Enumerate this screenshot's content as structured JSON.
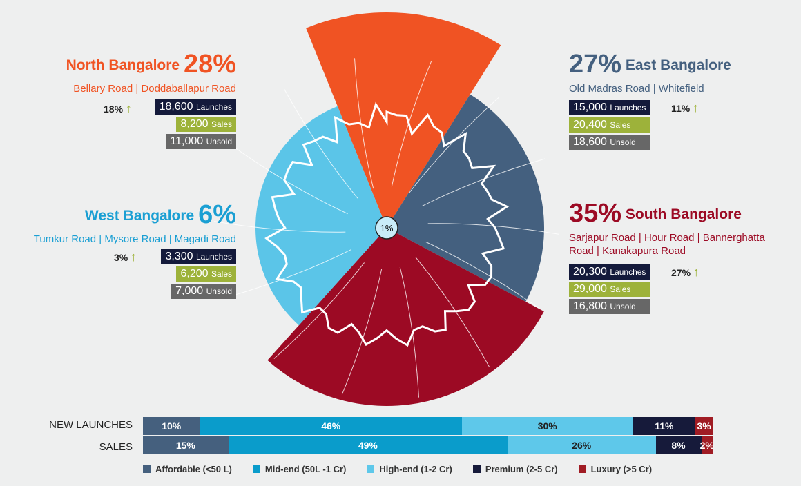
{
  "chart_data": [
    {
      "type": "polar-area",
      "regions": [
        {
          "key": "north",
          "name": "North Bangalore",
          "share": "28%",
          "value": 28,
          "roads": "Bellary Road | Doddaballapur Road",
          "growth": "18%",
          "launches": "18,600",
          "sales": "8,200",
          "unsold": "11,000",
          "color": "#f05323"
        },
        {
          "key": "east",
          "name": "East Bangalore",
          "share": "27%",
          "value": 27,
          "roads": "Old Madras Road | Whitefield",
          "growth": "11%",
          "launches": "15,000",
          "sales": "20,400",
          "unsold": "18,600",
          "color": "#44607f"
        },
        {
          "key": "south",
          "name": "South Bangalore",
          "share": "35%",
          "value": 35,
          "roads": "Sarjapur Road | Hour Road | Bannerghatta Road | Kanakapura Road",
          "growth": "27%",
          "launches": "20,300",
          "sales": "29,000",
          "unsold": "16,800",
          "color": "#9c0a24"
        },
        {
          "key": "west",
          "name": "West Bangalore",
          "share": "6%",
          "value": 6,
          "roads": "Tumkur Road | Mysore Road | Magadi Road",
          "growth": "3%",
          "launches": "3,300",
          "sales": "6,200",
          "unsold": "7,000",
          "color": "#5bc5e8"
        }
      ],
      "center": {
        "label": "1%",
        "value": 1
      },
      "labels": {
        "launches": "Launches",
        "sales": "Sales",
        "unsold": "Unsold"
      }
    },
    {
      "type": "bar",
      "stacked": true,
      "orientation": "horizontal",
      "categories": [
        "NEW LAUNCHES",
        "SALES"
      ],
      "series": [
        {
          "name": "Affordable (<50 L)",
          "values": [
            10,
            15
          ],
          "labels": [
            "10%",
            "15%"
          ],
          "color": "#45607e"
        },
        {
          "name": "Mid-end (50L -1 Cr)",
          "values": [
            46,
            49
          ],
          "labels": [
            "46%",
            "49%"
          ],
          "color": "#0a9ccb"
        },
        {
          "name": "High-end (1-2 Cr)",
          "values": [
            30,
            26
          ],
          "labels": [
            "30%",
            "26%"
          ],
          "color": "#5ec8ea"
        },
        {
          "name": "Premium (2-5 Cr)",
          "values": [
            11,
            8
          ],
          "labels": [
            "11%",
            "8%"
          ],
          "color": "#161a3a"
        },
        {
          "name": "Luxury (>5 Cr)",
          "values": [
            3,
            2
          ],
          "labels": [
            "3%",
            "2%"
          ],
          "color": "#a01c24"
        }
      ],
      "legend": "bottom"
    }
  ]
}
